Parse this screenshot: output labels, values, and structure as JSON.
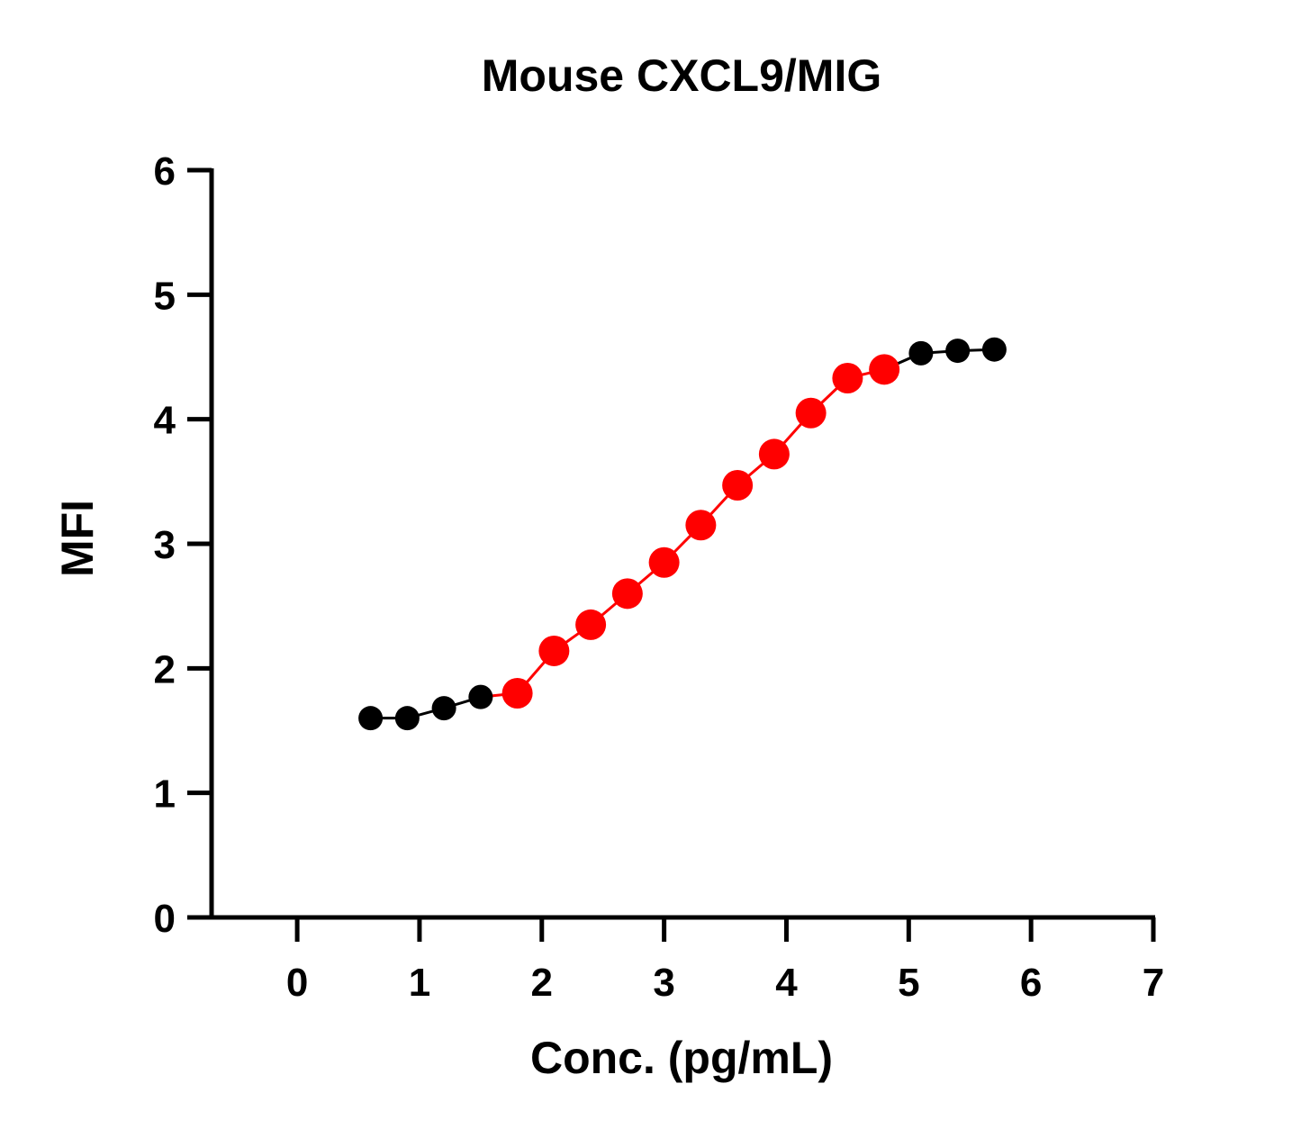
{
  "chart_data": {
    "type": "line",
    "title": "Mouse CXCL9/MIG",
    "xlabel": "Conc. (pg/mL)",
    "ylabel": "MFI",
    "xlim": [
      -0.7,
      7
    ],
    "ylim": [
      0,
      6
    ],
    "x_ticks": [
      0,
      1,
      2,
      3,
      4,
      5,
      6,
      7
    ],
    "y_ticks": [
      0,
      1,
      2,
      3,
      4,
      5,
      6
    ],
    "grid": false,
    "x": [
      0.6,
      0.9,
      1.2,
      1.5,
      1.8,
      2.1,
      2.4,
      2.7,
      3.0,
      3.3,
      3.6,
      3.9,
      4.2,
      4.5,
      4.8,
      5.1,
      5.4,
      5.7
    ],
    "y": [
      1.6,
      1.6,
      1.68,
      1.77,
      1.8,
      2.14,
      2.35,
      2.6,
      2.85,
      3.15,
      3.47,
      3.72,
      4.05,
      4.33,
      4.4,
      4.53,
      4.55,
      4.56
    ],
    "point_colors": [
      "#000000",
      "#000000",
      "#000000",
      "#000000",
      "#ff0000",
      "#ff0000",
      "#ff0000",
      "#ff0000",
      "#ff0000",
      "#ff0000",
      "#ff0000",
      "#ff0000",
      "#ff0000",
      "#ff0000",
      "#ff0000",
      "#000000",
      "#000000",
      "#000000"
    ],
    "colors": {
      "highlight": "#ff0000",
      "base": "#000000"
    }
  }
}
